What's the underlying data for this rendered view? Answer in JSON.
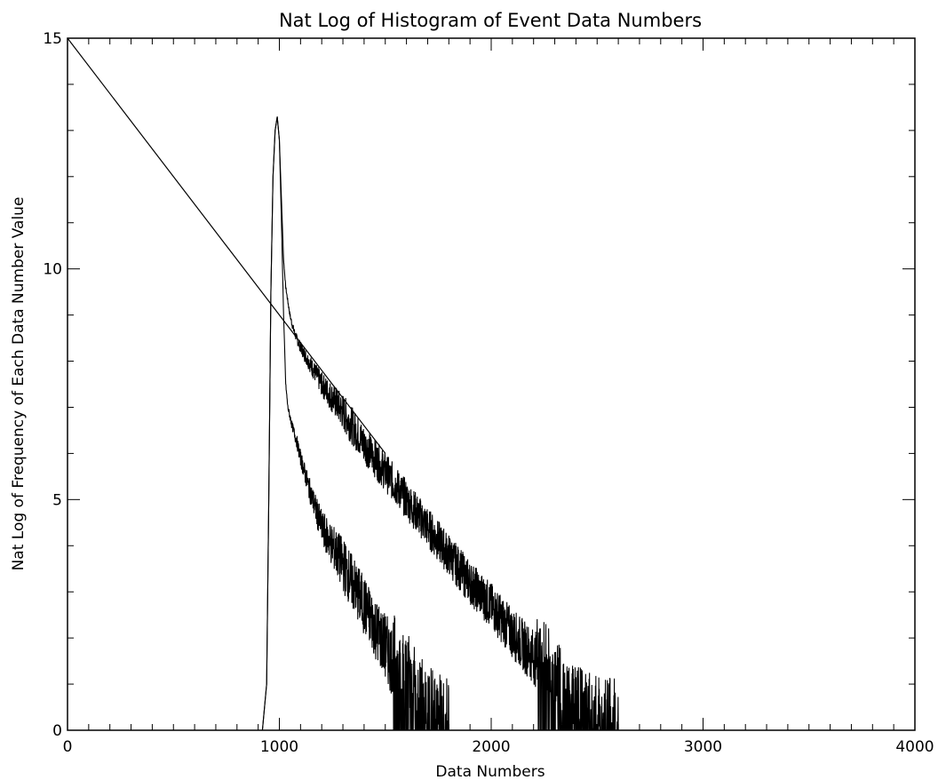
{
  "chart_data": {
    "type": "line",
    "title": "Nat Log of Histogram of Event Data Numbers",
    "xlabel": "Data Numbers",
    "ylabel": "Nat Log of Frequency of Each Data Number Value",
    "xlim": [
      0,
      4000
    ],
    "ylim": [
      0,
      15
    ],
    "grid": false,
    "x_ticks": [
      0,
      1000,
      2000,
      3000,
      4000
    ],
    "y_ticks": [
      0,
      5,
      10,
      15
    ],
    "x_minor_step": 100,
    "y_minor_step": 1,
    "colors": {
      "line": "#000000",
      "axis": "#000000",
      "background": "#ffffff"
    },
    "series": [
      {
        "x": [
          900,
          920,
          940,
          950,
          960,
          970,
          980,
          990,
          1000,
          1010,
          1020,
          1030,
          1040,
          1050,
          1060,
          1080,
          1100,
          1150,
          1200,
          1300,
          1400,
          1500,
          1600,
          1700,
          1800,
          1900,
          2000,
          2100,
          2200,
          2300,
          2400,
          2500,
          2600
        ],
        "y": [
          0,
          0,
          1.0,
          5.0,
          9.5,
          12.0,
          13.0,
          13.3,
          12.8,
          11.5,
          10.2,
          9.6,
          9.3,
          9.0,
          8.8,
          8.5,
          8.3,
          7.9,
          7.5,
          6.9,
          6.2,
          5.6,
          5.0,
          4.4,
          3.8,
          3.2,
          2.7,
          2.1,
          1.6,
          0.9,
          0.4,
          0.1,
          0
        ],
        "noise": 0.35
      },
      {
        "x": [
          900,
          920,
          940,
          950,
          960,
          970,
          980,
          990,
          1000,
          1010,
          1020,
          1030,
          1040,
          1060,
          1080,
          1100,
          1150,
          1200,
          1300,
          1400,
          1500,
          1600,
          1700,
          1800
        ],
        "y": [
          0,
          0,
          1.0,
          5.0,
          9.5,
          12.0,
          13.0,
          13.3,
          12.8,
          11.0,
          9.0,
          7.5,
          7.0,
          6.6,
          6.3,
          5.9,
          5.1,
          4.4,
          3.6,
          2.7,
          1.8,
          1.0,
          0.3,
          0
        ],
        "noise": 0.45
      },
      {
        "x": [
          0,
          1500
        ],
        "y": [
          15,
          6.0
        ],
        "noise": 0
      }
    ]
  }
}
